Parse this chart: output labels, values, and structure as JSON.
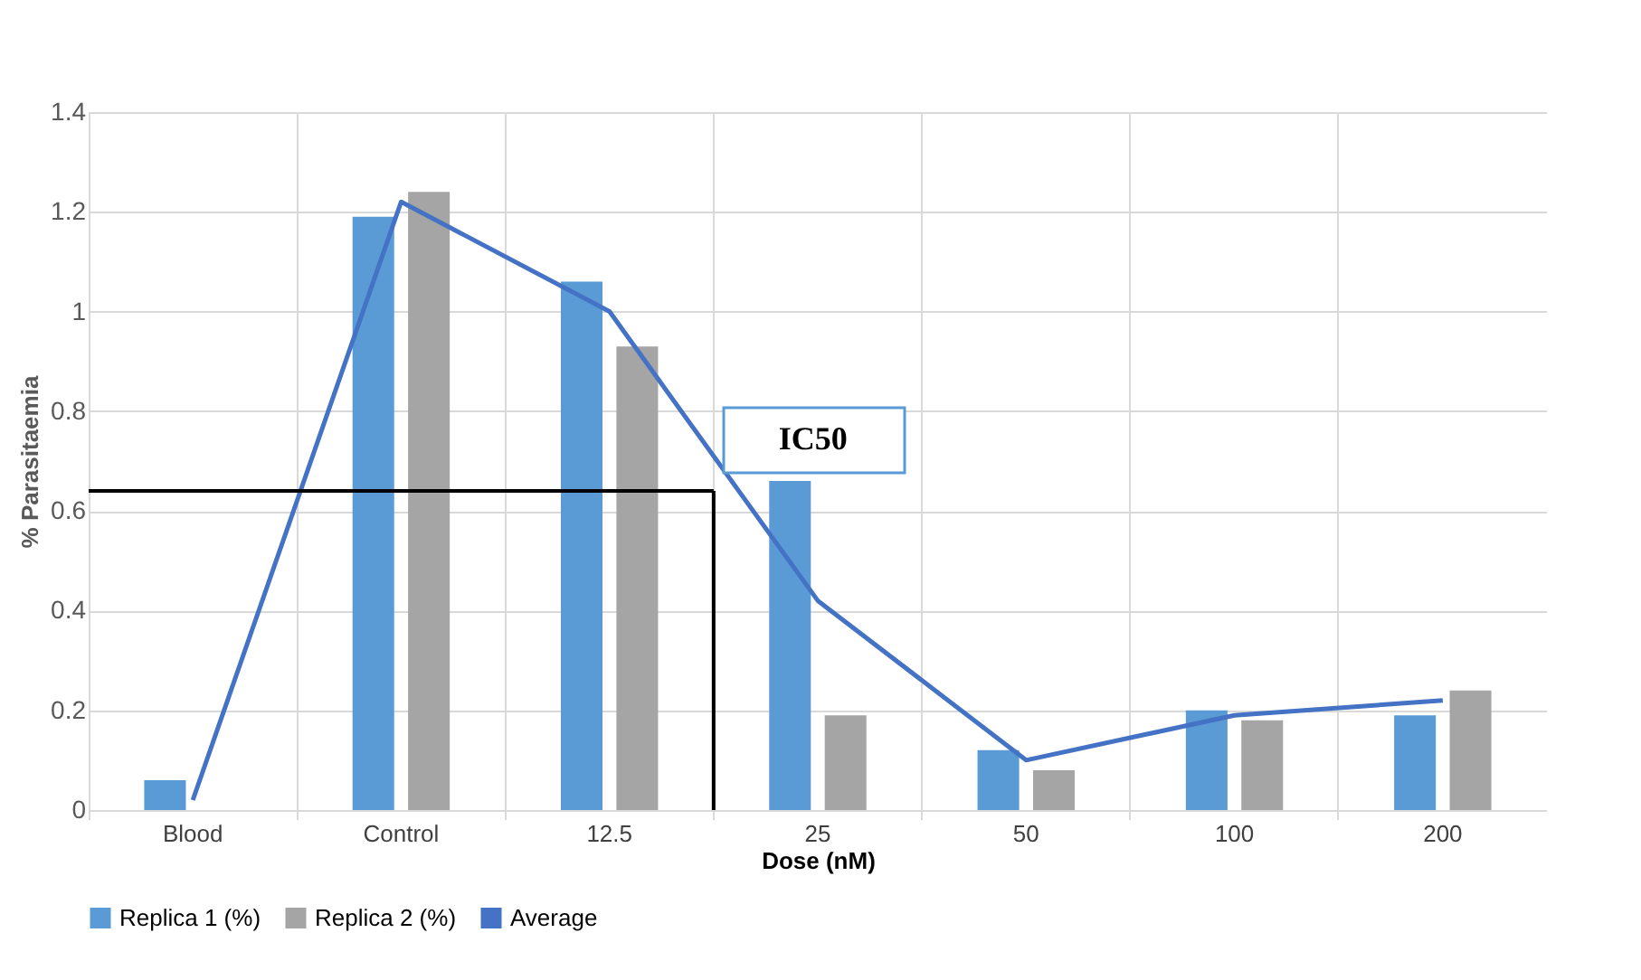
{
  "chart_data": {
    "type": "bar",
    "xlabel": "Dose (nM)",
    "ylabel": "% Parasitaemia",
    "categories": [
      "Blood",
      "Control",
      "12.5",
      "25",
      "50",
      "100",
      "200"
    ],
    "series": [
      {
        "name": "Replica 1 (%)",
        "color": "#5b9bd5",
        "values": [
          0.06,
          1.19,
          1.06,
          0.66,
          0.12,
          0.2,
          0.19
        ]
      },
      {
        "name": "Replica 2 (%)",
        "color": "#a5a5a5",
        "values": [
          null,
          1.24,
          0.93,
          0.19,
          0.08,
          0.18,
          0.24
        ]
      },
      {
        "name": "Average",
        "color": "#4472c4",
        "type": "line",
        "values": [
          0.02,
          1.22,
          1.0,
          0.42,
          0.1,
          0.19,
          0.22
        ]
      }
    ],
    "ylim": [
      0,
      1.4
    ],
    "yticks": [
      0,
      0.2,
      0.4,
      0.6,
      0.8,
      1,
      1.2,
      1.4
    ],
    "ref_lines": [
      {
        "axis": "y",
        "value": 0.64,
        "color": "#000000"
      },
      {
        "axis": "x",
        "value": "25",
        "color": "#000000"
      }
    ],
    "annotations": [
      {
        "text": "IC50",
        "x": "25",
        "y": 0.64
      }
    ],
    "grid": true,
    "legend": "bottom"
  }
}
